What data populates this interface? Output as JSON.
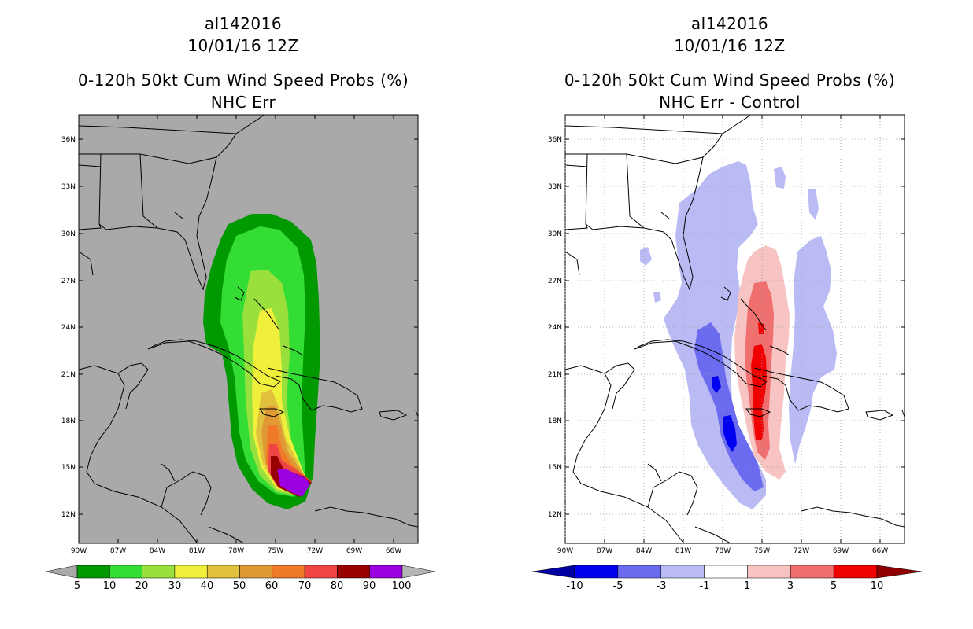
{
  "left_panel": {
    "storm_id": "al142016",
    "datetime": "10/01/16 12Z",
    "product": "0-120h 50kt Cum Wind Speed Probs (%)",
    "subtitle": "NHC Err",
    "background_color": "#a9a9a9",
    "lat_labels": [
      "36N",
      "33N",
      "30N",
      "27N",
      "24N",
      "21N",
      "18N",
      "15N",
      "12N"
    ],
    "lon_labels": [
      "90W",
      "87W",
      "84W",
      "81W",
      "78W",
      "75W",
      "72W",
      "69W",
      "66W"
    ],
    "colorbar": {
      "colors": [
        "#a9a9a9",
        "#009900",
        "#33dd33",
        "#99e03c",
        "#f0f03c",
        "#e0c03c",
        "#e09a35",
        "#f07a28",
        "#f04545",
        "#990000",
        "#9a00e0",
        "#b4b4b4"
      ],
      "labels": [
        "5",
        "10",
        "20",
        "30",
        "40",
        "50",
        "60",
        "70",
        "80",
        "90",
        "100"
      ]
    }
  },
  "right_panel": {
    "storm_id": "al142016",
    "datetime": "10/01/16 12Z",
    "product": "0-120h 50kt Cum Wind Speed Probs (%)",
    "subtitle": "NHC Err - Control",
    "background_color": "#ffffff",
    "lat_labels": [
      "36N",
      "33N",
      "30N",
      "27N",
      "24N",
      "21N",
      "18N",
      "15N",
      "12N"
    ],
    "lon_labels": [
      "90W",
      "87W",
      "84W",
      "81W",
      "78W",
      "75W",
      "72W",
      "69W",
      "66W"
    ],
    "colorbar": {
      "colors": [
        "#0000a0",
        "#0000f0",
        "#6b6bf0",
        "#babaf5",
        "#ffffff",
        "#f8c3c3",
        "#f07070",
        "#f00000",
        "#900000"
      ],
      "labels": [
        "-10",
        "-5",
        "-3",
        "-1",
        "1",
        "3",
        "5",
        "10"
      ]
    }
  }
}
